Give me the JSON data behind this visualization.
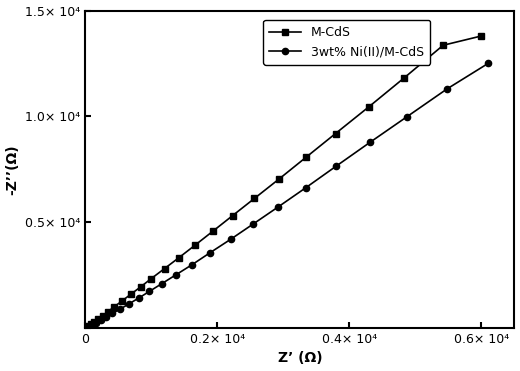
{
  "title": "",
  "xlabel": "Z’ (Ω)",
  "ylabel": "-Z’’(Ω)",
  "xlim": [
    0,
    6500
  ],
  "ylim": [
    0,
    15000
  ],
  "xticks": [
    0,
    2000,
    4000,
    6000
  ],
  "yticks": [
    0,
    5000,
    10000,
    15000
  ],
  "xtick_labels": [
    "0",
    "0.2× 10⁴",
    "0.4× 10⁴",
    "0.6× 10⁴"
  ],
  "ytick_labels": [
    "",
    "0.5× 10⁴",
    "1.0× 10⁴",
    "1.5× 10⁴"
  ],
  "series1_label": "M-CdS",
  "series2_label": "3wt% Ni(II)/M-CdS",
  "series1_color": "#000000",
  "series2_color": "#000000",
  "series1_marker": "s",
  "series2_marker": "o",
  "background_color": "#ffffff",
  "series1_x": [
    0,
    40,
    80,
    130,
    190,
    260,
    340,
    440,
    560,
    690,
    840,
    1000,
    1200,
    1420,
    1660,
    1930,
    2230,
    2560,
    2930,
    3340,
    3790,
    4290,
    4830,
    5420,
    6000
  ],
  "series1_y": [
    0,
    80,
    170,
    280,
    420,
    580,
    770,
    1010,
    1290,
    1600,
    1950,
    2340,
    2810,
    3330,
    3910,
    4570,
    5310,
    6120,
    7030,
    8060,
    9190,
    10440,
    11820,
    13360,
    13800
  ],
  "series2_x": [
    0,
    50,
    100,
    160,
    230,
    310,
    410,
    530,
    660,
    810,
    970,
    1160,
    1370,
    1620,
    1890,
    2200,
    2540,
    2920,
    3340,
    3800,
    4310,
    4870,
    5480,
    6100
  ],
  "series2_y": [
    0,
    70,
    150,
    250,
    370,
    510,
    690,
    900,
    1140,
    1420,
    1730,
    2100,
    2510,
    3000,
    3560,
    4190,
    4910,
    5720,
    6630,
    7650,
    8770,
    9980,
    11300,
    12500
  ],
  "figwidth": 5.2,
  "figheight": 3.71,
  "dpi": 100
}
